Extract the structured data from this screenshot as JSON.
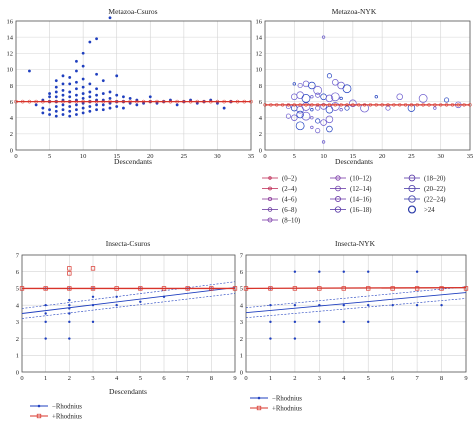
{
  "chart_data": [
    {
      "type": "scatter",
      "title": "Metazoa-Csuros",
      "xlabel": "Descendants",
      "xlim": [
        0,
        35
      ],
      "ylim": [
        0,
        16
      ],
      "xticks": [
        0,
        5,
        10,
        15,
        20,
        25,
        30,
        35
      ],
      "yticks": [
        0,
        2,
        4,
        6,
        8,
        10,
        12,
        14,
        16
      ],
      "grid": true,
      "reference_line": 6,
      "points": [
        [
          2,
          9.8
        ],
        [
          3,
          5.6
        ],
        [
          4,
          4.6
        ],
        [
          4,
          6.2
        ],
        [
          4,
          5.2
        ],
        [
          5,
          4.4
        ],
        [
          5,
          5
        ],
        [
          5,
          6
        ],
        [
          5,
          6.6
        ],
        [
          5,
          7
        ],
        [
          6,
          4.2
        ],
        [
          6,
          4.8
        ],
        [
          6,
          5.4
        ],
        [
          6,
          6
        ],
        [
          6,
          6.6
        ],
        [
          6,
          7.2
        ],
        [
          6,
          7.8
        ],
        [
          6,
          8.6
        ],
        [
          7,
          4.4
        ],
        [
          7,
          5
        ],
        [
          7,
          5.6
        ],
        [
          7,
          6.2
        ],
        [
          7,
          6.8
        ],
        [
          7,
          7.4
        ],
        [
          7,
          8.2
        ],
        [
          7,
          9.2
        ],
        [
          8,
          4.2
        ],
        [
          8,
          4.8
        ],
        [
          8,
          5.4
        ],
        [
          8,
          6
        ],
        [
          8,
          6.6
        ],
        [
          8,
          7.2
        ],
        [
          8,
          8.2
        ],
        [
          8,
          9
        ],
        [
          9,
          4.4
        ],
        [
          9,
          5
        ],
        [
          9,
          5.6
        ],
        [
          9,
          6.2
        ],
        [
          9,
          6.8
        ],
        [
          9,
          7.6
        ],
        [
          9,
          8.4
        ],
        [
          9,
          9.8
        ],
        [
          9,
          11
        ],
        [
          10,
          4.6
        ],
        [
          10,
          5.2
        ],
        [
          10,
          5.8
        ],
        [
          10,
          6.4
        ],
        [
          10,
          7
        ],
        [
          10,
          7.8
        ],
        [
          10,
          8.8
        ],
        [
          10,
          10.4
        ],
        [
          10,
          12
        ],
        [
          11,
          4.8
        ],
        [
          11,
          5.4
        ],
        [
          11,
          6
        ],
        [
          11,
          6.6
        ],
        [
          11,
          7.2
        ],
        [
          11,
          8.2
        ],
        [
          11,
          13.4
        ],
        [
          12,
          5
        ],
        [
          12,
          5.6
        ],
        [
          12,
          6.2
        ],
        [
          12,
          6.8
        ],
        [
          12,
          7.6
        ],
        [
          12,
          9.4
        ],
        [
          12,
          13.8
        ],
        [
          13,
          5
        ],
        [
          13,
          5.6
        ],
        [
          13,
          6.2
        ],
        [
          13,
          7
        ],
        [
          13,
          8.6
        ],
        [
          14,
          5.2
        ],
        [
          14,
          5.8
        ],
        [
          14,
          6.4
        ],
        [
          14,
          7.2
        ],
        [
          14,
          16.4
        ],
        [
          15,
          5.4
        ],
        [
          15,
          6
        ],
        [
          15,
          6.8
        ],
        [
          15,
          9.2
        ],
        [
          16,
          5.2
        ],
        [
          16,
          6
        ],
        [
          16,
          6.6
        ],
        [
          17,
          5.8
        ],
        [
          17,
          6.4
        ],
        [
          18,
          5.6
        ],
        [
          18,
          6.2
        ],
        [
          19,
          5.8
        ],
        [
          20,
          6
        ],
        [
          20,
          6.6
        ],
        [
          21,
          5.8
        ],
        [
          22,
          6
        ],
        [
          23,
          6.2
        ],
        [
          24,
          5.6
        ],
        [
          25,
          6
        ],
        [
          26,
          6.2
        ],
        [
          27,
          5.8
        ],
        [
          28,
          6
        ],
        [
          29,
          6.2
        ],
        [
          30,
          5.8
        ],
        [
          31,
          5.2
        ],
        [
          32,
          6
        ]
      ]
    },
    {
      "type": "scatter",
      "title": "Metazoa-NYK",
      "xlabel": "Descendants",
      "xlim": [
        0,
        35
      ],
      "ylim": [
        0,
        16
      ],
      "xticks": [
        0,
        5,
        10,
        15,
        20,
        25,
        30,
        35
      ],
      "yticks": [
        0,
        2,
        4,
        6,
        8,
        10,
        12,
        14,
        16
      ],
      "grid": true,
      "reference_line": 5.6,
      "legend": [
        "(0–2)",
        "(2–4)",
        "(4–6)",
        "(6–8)",
        "(8–10)",
        "(10–12)",
        "(12–14)",
        "(14–16)",
        "(16–18)",
        "(18–20)",
        "(20–22)",
        "(22–24)",
        ">24"
      ],
      "points": [
        [
          5,
          8.2
        ],
        [
          6,
          8
        ],
        [
          7,
          8.2
        ],
        [
          8,
          8
        ],
        [
          9,
          7.4
        ],
        [
          10,
          14
        ],
        [
          11,
          9.2
        ],
        [
          12,
          8.4
        ],
        [
          13,
          8
        ],
        [
          14,
          7.6
        ],
        [
          10,
          1
        ],
        [
          4,
          5.4
        ],
        [
          5,
          5.2
        ],
        [
          6,
          5
        ],
        [
          7,
          5.4
        ],
        [
          8,
          5
        ],
        [
          9,
          5.2
        ],
        [
          10,
          5.4
        ],
        [
          11,
          5
        ],
        [
          12,
          5.4
        ],
        [
          13,
          5
        ],
        [
          14,
          5.2
        ],
        [
          5,
          6.6
        ],
        [
          6,
          6.8
        ],
        [
          7,
          6.4
        ],
        [
          8,
          6.6
        ],
        [
          9,
          6.8
        ],
        [
          10,
          6.6
        ],
        [
          11,
          6.4
        ],
        [
          12,
          6.6
        ],
        [
          13,
          6.4
        ],
        [
          4,
          4.2
        ],
        [
          5,
          4
        ],
        [
          6,
          4.4
        ],
        [
          7,
          4.2
        ],
        [
          8,
          4
        ],
        [
          9,
          3.6
        ],
        [
          10,
          3.4
        ],
        [
          11,
          3.8
        ],
        [
          6,
          3
        ],
        [
          8,
          2.8
        ],
        [
          9,
          2.4
        ],
        [
          11,
          2.6
        ],
        [
          15,
          5.8
        ],
        [
          17,
          5.2
        ],
        [
          19,
          6.6
        ],
        [
          21,
          5.2
        ],
        [
          23,
          6.6
        ],
        [
          25,
          5.2
        ],
        [
          27,
          6.4
        ],
        [
          29,
          5.2
        ],
        [
          31,
          6.2
        ],
        [
          33,
          5.6
        ]
      ]
    },
    {
      "type": "scatter",
      "title": "Insecta-Csuros",
      "xlabel": "Descendants",
      "xlim": [
        0,
        9
      ],
      "ylim": [
        0,
        7
      ],
      "xticks": [
        0,
        1,
        2,
        3,
        4,
        5,
        6,
        7,
        8,
        9
      ],
      "yticks": [
        0,
        1,
        2,
        3,
        4,
        5,
        6,
        7
      ],
      "grid": true,
      "series": [
        {
          "name": "−Rhodnius",
          "fit": [
            [
              0,
              3.5
            ],
            [
              9,
              5.05
            ]
          ],
          "points": [
            [
              1,
              2
            ],
            [
              1,
              3
            ],
            [
              1,
              3.5
            ],
            [
              1,
              4
            ],
            [
              1,
              5
            ],
            [
              2,
              2
            ],
            [
              2,
              3
            ],
            [
              2,
              3.5
            ],
            [
              2,
              3.8
            ],
            [
              2,
              4
            ],
            [
              2,
              4.3
            ],
            [
              2,
              5
            ],
            [
              3,
              3
            ],
            [
              3,
              4
            ],
            [
              3,
              4.5
            ],
            [
              3,
              5
            ],
            [
              4,
              4
            ],
            [
              4,
              4.5
            ],
            [
              5,
              4.2
            ],
            [
              5,
              5
            ],
            [
              6,
              4.5
            ],
            [
              7,
              5
            ],
            [
              8,
              5
            ]
          ]
        },
        {
          "name": "+Rhodnius",
          "fit": [
            [
              0,
              5
            ],
            [
              9,
              5
            ]
          ],
          "points": [
            [
              0,
              5
            ],
            [
              1,
              5
            ],
            [
              2,
              5
            ],
            [
              2,
              5.9
            ],
            [
              2,
              6.2
            ],
            [
              3,
              5
            ],
            [
              3,
              6.2
            ],
            [
              4,
              5
            ],
            [
              5,
              5
            ],
            [
              6,
              5
            ],
            [
              7,
              5
            ],
            [
              8,
              5
            ],
            [
              9,
              5
            ]
          ]
        }
      ]
    },
    {
      "type": "scatter",
      "title": "Insecta-NYK",
      "xlabel": "",
      "xlim": [
        0,
        9
      ],
      "ylim": [
        0,
        7
      ],
      "xticks": [
        0,
        1,
        2,
        3,
        4,
        5,
        6,
        7,
        8,
        9
      ],
      "yticks": [
        0,
        1,
        2,
        3,
        4,
        5,
        6,
        7
      ],
      "grid": true,
      "series": [
        {
          "name": "−Rhodnius",
          "fit": [
            [
              0,
              3.55
            ],
            [
              9,
              4.75
            ]
          ],
          "points": [
            [
              1,
              2
            ],
            [
              1,
              3
            ],
            [
              1,
              4
            ],
            [
              1,
              5
            ],
            [
              2,
              2
            ],
            [
              2,
              3
            ],
            [
              2,
              4
            ],
            [
              2,
              6
            ],
            [
              3,
              3
            ],
            [
              3,
              4
            ],
            [
              3,
              6
            ],
            [
              4,
              3
            ],
            [
              4,
              4
            ],
            [
              4,
              6
            ],
            [
              5,
              3
            ],
            [
              5,
              4
            ],
            [
              5,
              6
            ],
            [
              6,
              4
            ],
            [
              7,
              4
            ],
            [
              7,
              6
            ],
            [
              8,
              4
            ]
          ]
        },
        {
          "name": "+Rhodnius",
          "fit": [
            [
              0,
              5
            ],
            [
              9,
              5.05
            ]
          ],
          "points": [
            [
              0,
              5
            ],
            [
              1,
              5
            ],
            [
              2,
              5
            ],
            [
              3,
              5
            ],
            [
              4,
              5
            ],
            [
              5,
              5
            ],
            [
              6,
              5
            ],
            [
              7,
              5
            ],
            [
              8,
              5
            ],
            [
              9,
              5
            ]
          ]
        }
      ]
    }
  ]
}
